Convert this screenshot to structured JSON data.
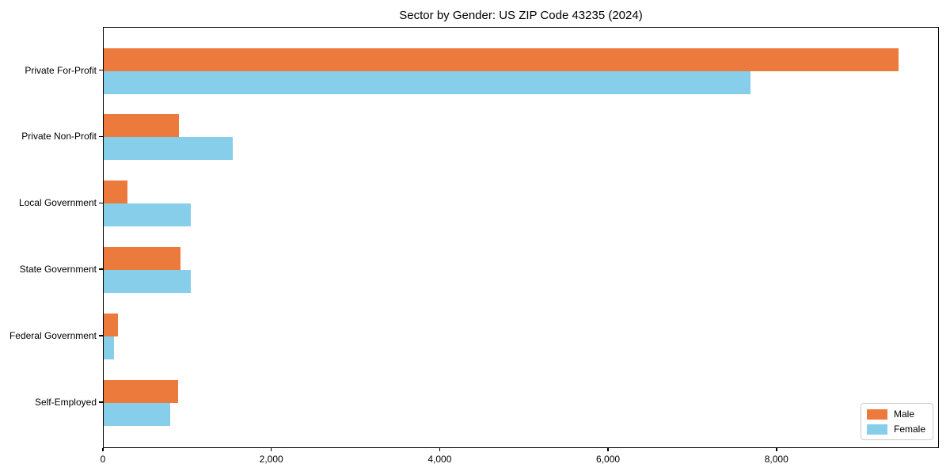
{
  "chart_data": {
    "type": "bar",
    "orientation": "horizontal",
    "title": "Sector by Gender: US ZIP Code 43235 (2024)",
    "categories": [
      "Private For-Profit",
      "Private Non-Profit",
      "Local Government",
      "State Government",
      "Federal Government",
      "Self-Employed"
    ],
    "series": [
      {
        "name": "Male",
        "color": "#EC7A3C",
        "values": [
          9440,
          890,
          280,
          910,
          170,
          880
        ]
      },
      {
        "name": "Female",
        "color": "#87CEEB",
        "values": [
          7680,
          1530,
          1030,
          1030,
          120,
          790
        ]
      }
    ],
    "xlabel": "",
    "ylabel": "",
    "xlim": [
      0,
      9930
    ],
    "xticks": [
      0,
      2000,
      4000,
      6000,
      8000
    ],
    "xtick_labels": [
      "0",
      "2,000",
      "4,000",
      "6,000",
      "8,000"
    ],
    "grid": false,
    "legend": {
      "position": "lower right",
      "entries": [
        {
          "label": "Male",
          "color": "#EC7A3C"
        },
        {
          "label": "Female",
          "color": "#87CEEB"
        }
      ]
    }
  }
}
